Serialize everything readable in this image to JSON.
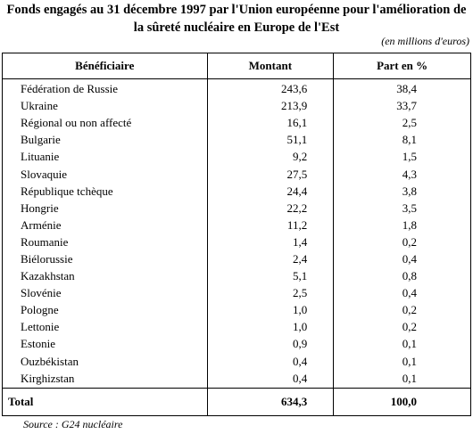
{
  "title": {
    "line1": "Fonds engagés au 31 décembre 1997 par l'Union européenne pour l'amélioration de",
    "line2": "la sûreté nucléaire en Europe de l'Est"
  },
  "unit_note": "(en millions d'euros)",
  "table": {
    "headers": [
      "Bénéficiaire",
      "Montant",
      "Part en %"
    ],
    "rows": [
      [
        "Fédération de Russie",
        "243,6",
        "38,4"
      ],
      [
        "Ukraine",
        "213,9",
        "33,7"
      ],
      [
        "Régional ou non affecté",
        "16,1",
        "2,5"
      ],
      [
        "Bulgarie",
        "51,1",
        "8,1"
      ],
      [
        "Lituanie",
        "9,2",
        "1,5"
      ],
      [
        "Slovaquie",
        "27,5",
        "4,3"
      ],
      [
        "République tchèque",
        "24,4",
        "3,8"
      ],
      [
        "Hongrie",
        "22,2",
        "3,5"
      ],
      [
        "Arménie",
        "11,2",
        "1,8"
      ],
      [
        "Roumanie",
        "1,4",
        "0,2"
      ],
      [
        "Biélorussie",
        "2,4",
        "0,4"
      ],
      [
        "Kazakhstan",
        "5,1",
        "0,8"
      ],
      [
        "Slovénie",
        "2,5",
        "0,4"
      ],
      [
        "Pologne",
        "1,0",
        "0,2"
      ],
      [
        "Lettonie",
        "1,0",
        "0,2"
      ],
      [
        "Estonie",
        "0,9",
        "0,1"
      ],
      [
        "Ouzbékistan",
        "0,4",
        "0,1"
      ],
      [
        "Kirghizstan",
        "0,4",
        "0,1"
      ]
    ],
    "total": [
      "Total",
      "634,3",
      "100,0"
    ]
  },
  "source": "Source : G24 nucléaire"
}
